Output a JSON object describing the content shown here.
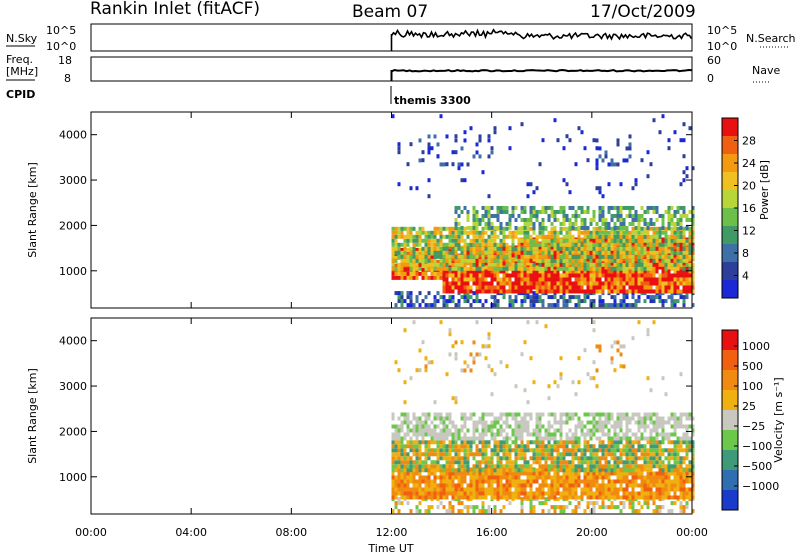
{
  "header": {
    "station": "Rankin Inlet (fitACF)",
    "beam": "Beam 07",
    "date": "17/Oct/2009"
  },
  "panels": {
    "nsky": {
      "left_label": "N.Sky",
      "right_label": "N.Search",
      "left_ticks": [
        "10^5",
        "10^0"
      ],
      "right_ticks": [
        "10^5",
        "10^0"
      ]
    },
    "freq": {
      "left_label_1": "Freq.",
      "left_label_2": "[MHz]",
      "right_label": "Nave",
      "left_ticks": [
        "18",
        "8"
      ],
      "right_ticks": [
        "60",
        "0"
      ]
    },
    "cpid": {
      "label": "CPID",
      "text": "themis 3300"
    }
  },
  "chart_data": [
    {
      "type": "heatmap",
      "name": "power",
      "ylabel": "Slant Range [km]",
      "ylim": [
        180,
        4500
      ],
      "yticks": [
        1000,
        2000,
        3000,
        4000
      ],
      "xlim": [
        0,
        24
      ],
      "xticks": [
        "00:00",
        "04:00",
        "08:00",
        "12:00",
        "16:00",
        "20:00",
        "00:00"
      ],
      "data_start_hour": 12,
      "colorbar": {
        "label": "Power [dB]",
        "range": [
          0,
          32
        ],
        "ticks": [
          4,
          8,
          12,
          16,
          20,
          24,
          28
        ],
        "colors": [
          "#1a28d6",
          "#2d3f9b",
          "#3e6fa6",
          "#3f9a66",
          "#6cc04a",
          "#b8d63a",
          "#f0c020",
          "#f49a10",
          "#f06010",
          "#e81010"
        ]
      }
    },
    {
      "type": "heatmap",
      "name": "velocity",
      "ylabel": "Slant Range [km]",
      "ylim": [
        180,
        4500
      ],
      "yticks": [
        1000,
        2000,
        3000,
        4000
      ],
      "xlim": [
        0,
        24
      ],
      "xticks": [
        "00:00",
        "04:00",
        "08:00",
        "12:00",
        "16:00",
        "20:00",
        "00:00"
      ],
      "data_start_hour": 12,
      "colorbar": {
        "label": "Velocity [m s⁻¹]",
        "ticks": [
          "1000",
          "500",
          "100",
          "25",
          "−25",
          "−100",
          "−500",
          "−1000"
        ],
        "colors": [
          "#1a3acc",
          "#2f6eb0",
          "#3e9a78",
          "#6cc84a",
          "#c8c8c0",
          "#f0b010",
          "#f08a10",
          "#f06010",
          "#e81010"
        ]
      }
    }
  ],
  "xaxis": {
    "label": "Time UT",
    "ticks": [
      "00:00",
      "04:00",
      "08:00",
      "12:00",
      "16:00",
      "20:00",
      "00:00"
    ]
  }
}
